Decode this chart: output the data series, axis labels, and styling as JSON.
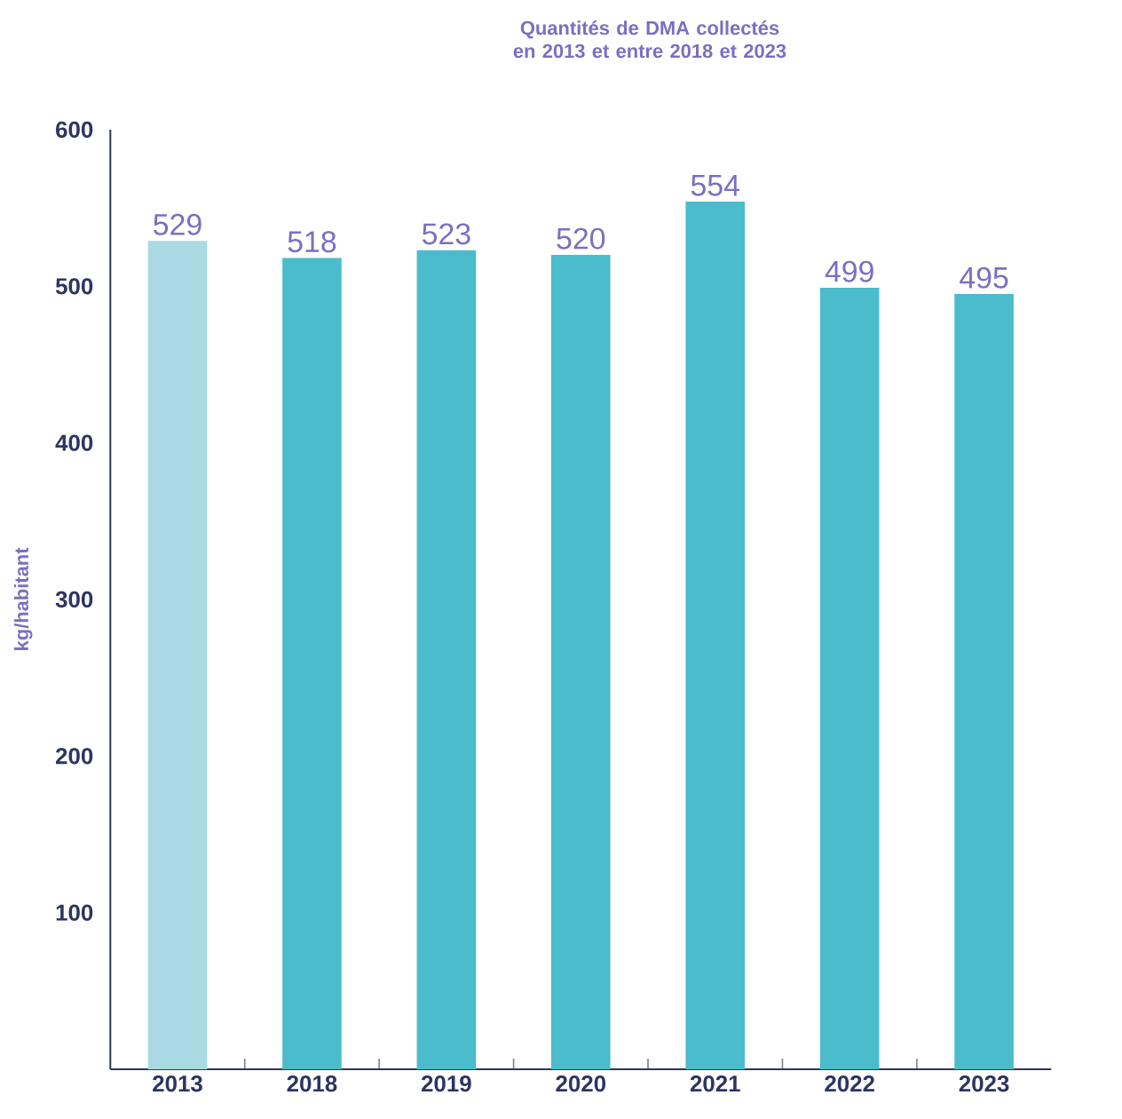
{
  "chart_data": {
    "type": "bar",
    "title": "Quantités de DMA collectés en 2013 et entre 2018 et 2023",
    "ylabel": "kg/habitant",
    "categories": [
      "2013",
      "2018",
      "2019",
      "2020",
      "2021",
      "2022",
      "2023"
    ],
    "values": [
      529,
      518,
      523,
      520,
      554,
      499,
      495
    ],
    "colors": [
      "#a9dae4",
      "#4bbccc",
      "#4bbccc",
      "#4bbccc",
      "#4bbccc",
      "#4bbccc",
      "#4bbccc"
    ],
    "ylim": [
      0,
      600
    ],
    "yticks": [
      100,
      200,
      300,
      400,
      500,
      600
    ],
    "data_labels": true,
    "grid": false
  }
}
